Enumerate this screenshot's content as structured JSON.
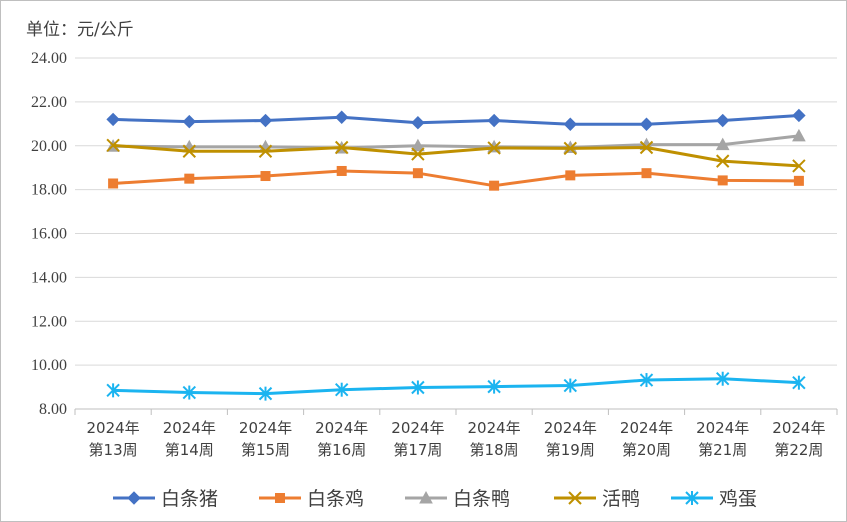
{
  "unit_label": "单位：元/公斤",
  "chart_data": {
    "type": "line",
    "title": "",
    "ylabel": "单位：元/公斤",
    "xlabel": "",
    "ylim": [
      8,
      24
    ],
    "yticks": [
      "8.00",
      "10.00",
      "12.00",
      "14.00",
      "16.00",
      "18.00",
      "20.00",
      "22.00",
      "24.00"
    ],
    "grid": "horizontal",
    "legend_position": "bottom",
    "categories": [
      [
        "2024年",
        "第13周"
      ],
      [
        "2024年",
        "第14周"
      ],
      [
        "2024年",
        "第15周"
      ],
      [
        "2024年",
        "第16周"
      ],
      [
        "2024年",
        "第17周"
      ],
      [
        "2024年",
        "第18周"
      ],
      [
        "2024年",
        "第19周"
      ],
      [
        "2024年",
        "第20周"
      ],
      [
        "2024年",
        "第21周"
      ],
      [
        "2024年",
        "第22周"
      ]
    ],
    "series": [
      {
        "name": "白条猪",
        "color": "#4472c4",
        "marker": "diamond",
        "values": [
          21.2,
          21.1,
          21.15,
          21.3,
          21.05,
          21.15,
          20.98,
          20.98,
          21.15,
          21.38
        ]
      },
      {
        "name": "白条鸡",
        "color": "#ed7d31",
        "marker": "square",
        "values": [
          18.28,
          18.5,
          18.62,
          18.85,
          18.75,
          18.18,
          18.65,
          18.75,
          18.42,
          18.4
        ]
      },
      {
        "name": "白条鸭",
        "color": "#a5a5a5",
        "marker": "triangle",
        "values": [
          19.98,
          19.95,
          19.95,
          19.9,
          20.0,
          19.95,
          19.92,
          20.05,
          20.05,
          20.45
        ]
      },
      {
        "name": "活鸭",
        "color": "#bf9000",
        "marker": "x",
        "values": [
          20.02,
          19.75,
          19.75,
          19.92,
          19.62,
          19.9,
          19.88,
          19.92,
          19.3,
          19.08
        ]
      },
      {
        "name": "鸡蛋",
        "color": "#1bb4f0",
        "marker": "asterisk",
        "values": [
          8.85,
          8.75,
          8.7,
          8.88,
          8.98,
          9.02,
          9.07,
          9.32,
          9.38,
          9.2
        ]
      }
    ]
  }
}
